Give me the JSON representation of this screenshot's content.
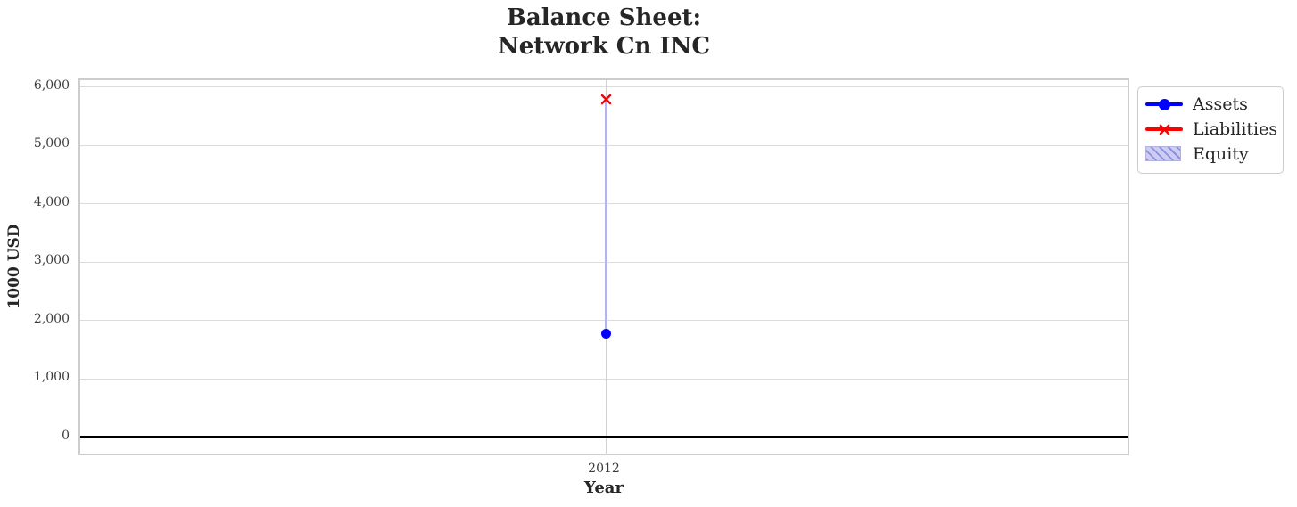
{
  "chart": {
    "title_line1": "Balance Sheet:",
    "title_line2": "Network Cn INC"
  },
  "chart_data": {
    "type": "line+bar",
    "title": "Balance Sheet: Network Cn INC",
    "xlabel": "Year",
    "ylabel": "1000 USD",
    "categories": [
      "2012"
    ],
    "series": [
      {
        "name": "Assets",
        "type": "line",
        "marker": "circle",
        "color": "#0000ff",
        "values": [
          1770
        ]
      },
      {
        "name": "Liabilities",
        "type": "line",
        "marker": "x",
        "color": "#ff0000",
        "values": [
          5815
        ]
      },
      {
        "name": "Equity",
        "type": "bar",
        "hatch": "///",
        "fill_color": "#cdcdf4",
        "edge_color": "#8f8fdd",
        "values": [
          -4045
        ],
        "bottom": [
          5815
        ]
      }
    ],
    "yticks": [
      0,
      1000,
      2000,
      3000,
      4000,
      5000,
      6000
    ],
    "ytick_labels": [
      "0",
      "1,000",
      "2,000",
      "3,000",
      "4,000",
      "5,000",
      "6,000"
    ],
    "ylim": [
      -340,
      6120
    ],
    "grid": true,
    "zero_line": true,
    "zero_line_color": "#000000",
    "gridline_color": "#dcdcdc",
    "legend_position": "outside-upper-right",
    "legend_items": [
      "Assets",
      "Liabilities",
      "Equity"
    ]
  }
}
